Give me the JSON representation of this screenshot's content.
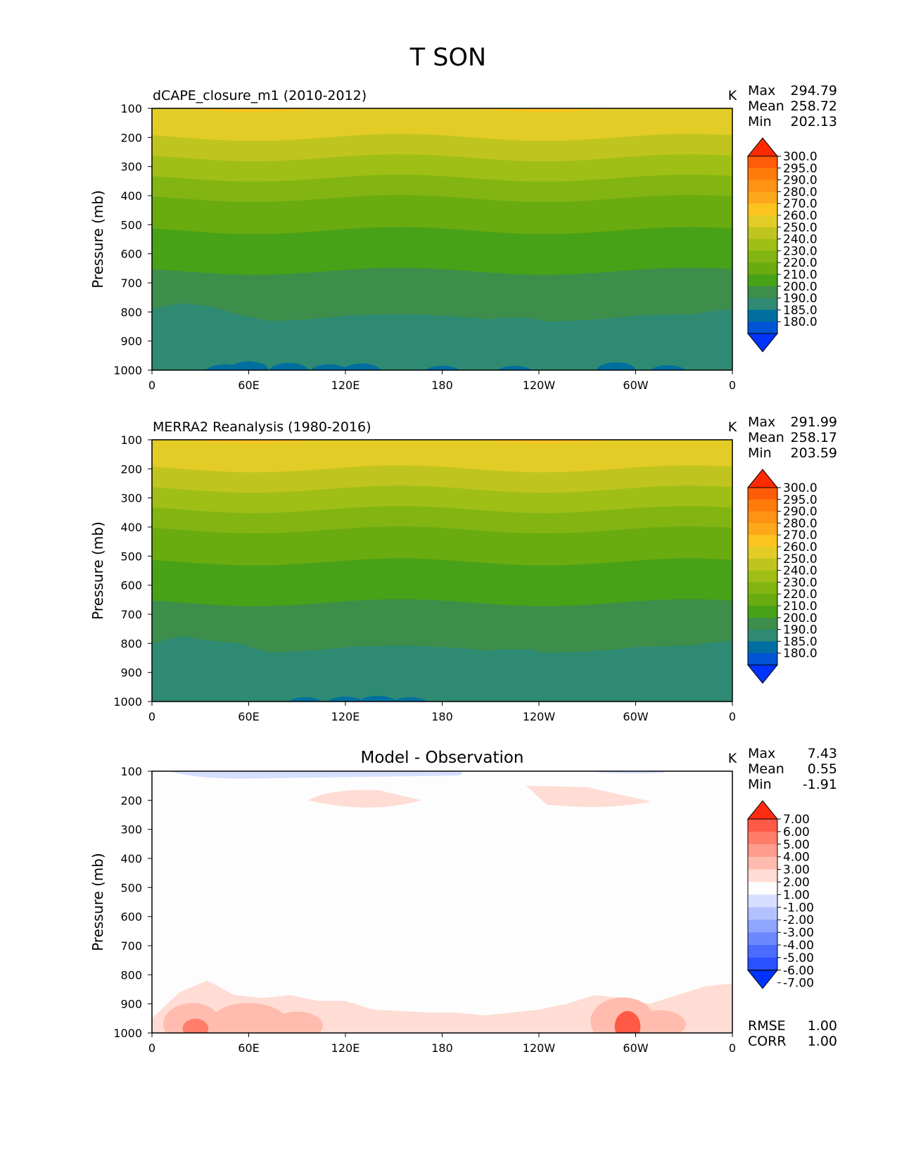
{
  "figure_title": "T SON",
  "colors": {
    "abs_levels": [
      "#0033ff",
      "#0055d4",
      "#006fa0",
      "#2f8a73",
      "#3d8e4a",
      "#48a218",
      "#6aab10",
      "#82b512",
      "#9fbf16",
      "#c0c41e",
      "#e3cc26",
      "#fdc31f",
      "#fca81a",
      "#fd9213",
      "#ff7b0c",
      "#ff5b08",
      "#ff2a00"
    ],
    "diff_levels": [
      "#0033ff",
      "#2a50ff",
      "#4a6cff",
      "#6c88ff",
      "#8fa5ff",
      "#b3c2ff",
      "#d6dfff",
      "#fdfdfd",
      "#ffdcd4",
      "#ffbcae",
      "#ff9d8c",
      "#ff7d69",
      "#ff5a45",
      "#ff2a12"
    ]
  },
  "chart_data": [
    {
      "type": "contour",
      "title": "dCAPE_closure_m1 (2010-2012)",
      "units": "K",
      "ylabel": "Pressure (mb)",
      "x": [
        0,
        60,
        120,
        180,
        240,
        300,
        360
      ],
      "xticks": [
        "0",
        "60E",
        "120E",
        "180",
        "120W",
        "60W",
        "0"
      ],
      "yticks": [
        100,
        200,
        300,
        400,
        500,
        600,
        700,
        800,
        900,
        1000
      ],
      "ylim": [
        1000,
        100
      ],
      "stats": {
        "Max": "294.79",
        "Mean": "258.72",
        "Min": "202.13"
      },
      "stat_labels": [
        "Max",
        "Mean",
        "Min"
      ],
      "stat_values": [
        "294.79",
        "258.72",
        "202.13"
      ],
      "colorbar_labels": [
        "300.0",
        "295.0",
        "290.0",
        "280.0",
        "270.0",
        "260.0",
        "250.0",
        "240.0",
        "230.0",
        "220.0",
        "210.0",
        "200.0",
        "190.0",
        "185.0",
        "180.0"
      ],
      "bands": [
        {
          "level_index": 5,
          "bottom_p": 100
        },
        {
          "level_index": 6,
          "bottom_p": 200
        },
        {
          "level_index": 7,
          "bottom_p": 270
        },
        {
          "level_index": 8,
          "bottom_p": 340
        },
        {
          "level_index": 9,
          "bottom_p": 410
        },
        {
          "level_index": 10,
          "bottom_p": 520
        },
        {
          "level_index": 11,
          "bottom_p": 660
        },
        {
          "level_index": 12,
          "bottom_p": 820
        },
        {
          "level_index": 13,
          "bottom_p": 1000
        }
      ],
      "band_280_290_top_p": [
        790,
        770,
        780,
        810,
        830,
        840,
        820,
        810,
        815,
        825,
        830,
        840,
        820,
        820,
        845,
        830,
        820,
        810,
        830,
        800,
        790
      ]
    },
    {
      "type": "contour",
      "title": "MERRA2 Reanalysis (1980-2016)",
      "units": "K",
      "ylabel": "Pressure (mb)",
      "x": [
        0,
        60,
        120,
        180,
        240,
        300,
        360
      ],
      "xticks": [
        "0",
        "60E",
        "120E",
        "180",
        "120W",
        "60W",
        "0"
      ],
      "yticks": [
        100,
        200,
        300,
        400,
        500,
        600,
        700,
        800,
        900,
        1000
      ],
      "ylim": [
        1000,
        100
      ],
      "stats": {
        "Max": "291.99",
        "Mean": "258.17",
        "Min": "203.59"
      },
      "stat_labels": [
        "Max",
        "Mean",
        "Min"
      ],
      "stat_values": [
        "291.99",
        "258.17",
        "203.59"
      ],
      "colorbar_labels": [
        "300.0",
        "295.0",
        "290.0",
        "280.0",
        "270.0",
        "260.0",
        "250.0",
        "240.0",
        "230.0",
        "220.0",
        "210.0",
        "200.0",
        "190.0",
        "185.0",
        "180.0"
      ],
      "bands": [
        {
          "level_index": 5,
          "bottom_p": 100
        },
        {
          "level_index": 6,
          "bottom_p": 200
        },
        {
          "level_index": 7,
          "bottom_p": 270
        },
        {
          "level_index": 8,
          "bottom_p": 340
        },
        {
          "level_index": 9,
          "bottom_p": 410
        },
        {
          "level_index": 10,
          "bottom_p": 520
        },
        {
          "level_index": 11,
          "bottom_p": 660
        },
        {
          "level_index": 12,
          "bottom_p": 820
        },
        {
          "level_index": 13,
          "bottom_p": 1000
        }
      ],
      "band_280_290_top_p": [
        800,
        775,
        790,
        800,
        830,
        840,
        820,
        810,
        815,
        825,
        835,
        840,
        820,
        820,
        845,
        830,
        820,
        810,
        830,
        800,
        790
      ]
    },
    {
      "type": "contour",
      "title": "Model - Observation",
      "units": "K",
      "ylabel": "Pressure (mb)",
      "x": [
        0,
        60,
        120,
        180,
        240,
        300,
        360
      ],
      "xticks": [
        "0",
        "60E",
        "120E",
        "180",
        "120W",
        "60W",
        "0"
      ],
      "yticks": [
        100,
        200,
        300,
        400,
        500,
        600,
        700,
        800,
        900,
        1000
      ],
      "ylim": [
        1000,
        100
      ],
      "stats": {
        "Max": "7.43",
        "Mean": "0.55",
        "Min": "-1.91"
      },
      "stat_labels": [
        "Max",
        "Mean",
        "Min"
      ],
      "stat_values": [
        "7.43",
        "0.55",
        "-1.91"
      ],
      "colorbar_labels": [
        "7.00",
        "6.00",
        "5.00",
        "4.00",
        "3.00",
        "2.00",
        "1.00",
        "-1.00",
        "-2.00",
        "-3.00",
        "-4.00",
        "-5.00",
        "-6.00",
        "-7.00"
      ],
      "metrics": {
        "RMSE": "1.00",
        "CORR": "1.00"
      },
      "metric_labels": [
        "RMSE",
        "CORR"
      ],
      "metric_values": [
        "1.00",
        "1.00"
      ]
    }
  ]
}
